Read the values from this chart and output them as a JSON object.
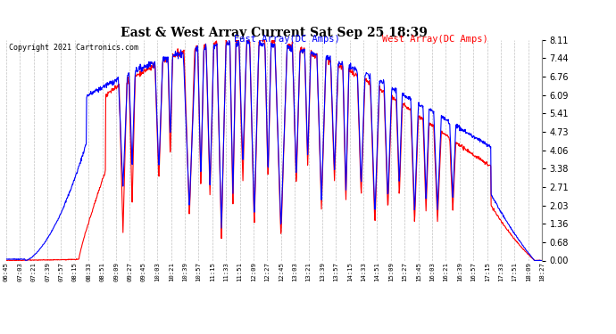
{
  "title": "East & West Array Current Sat Sep 25 18:39",
  "copyright": "Copyright 2021 Cartronics.com",
  "legend_east": "East Array(DC Amps)",
  "legend_west": "West Array(DC Amps)",
  "east_color": "#0000ff",
  "west_color": "#ff0000",
  "background_color": "#ffffff",
  "grid_color": "#bbbbbb",
  "ylim": [
    0.0,
    8.11
  ],
  "yticks": [
    0.0,
    0.68,
    1.36,
    2.03,
    2.71,
    3.38,
    4.06,
    4.73,
    5.41,
    6.09,
    6.76,
    7.44,
    8.11
  ],
  "xtick_labels": [
    "06:45",
    "07:03",
    "07:21",
    "07:39",
    "07:57",
    "08:15",
    "08:33",
    "08:51",
    "09:09",
    "09:27",
    "09:45",
    "10:03",
    "10:21",
    "10:39",
    "10:57",
    "11:15",
    "11:33",
    "11:51",
    "12:09",
    "12:27",
    "12:45",
    "13:03",
    "13:21",
    "13:39",
    "13:57",
    "14:15",
    "14:33",
    "14:51",
    "15:09",
    "15:27",
    "15:45",
    "16:03",
    "16:21",
    "16:39",
    "16:57",
    "17:15",
    "17:33",
    "17:51",
    "18:09",
    "18:27"
  ]
}
